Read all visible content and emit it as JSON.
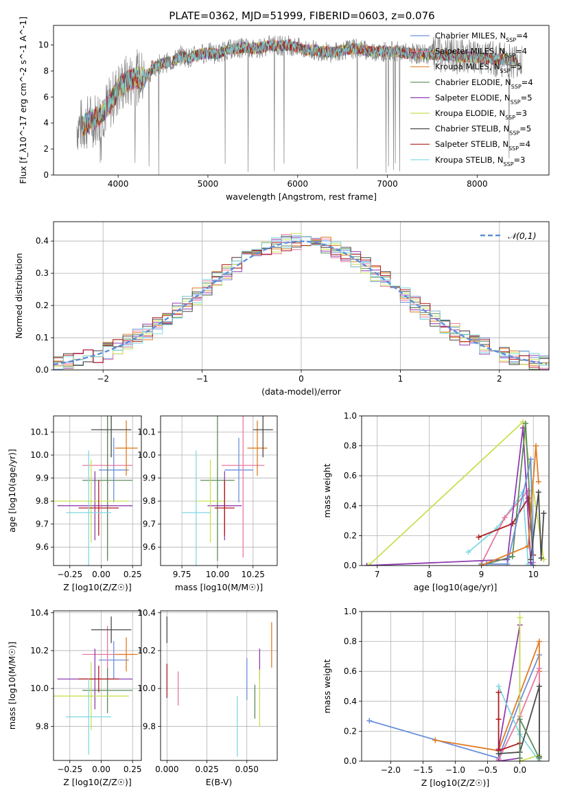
{
  "figure": {
    "title": "PLATE=0362, MJD=51999, FIBERID=0603, z=0.076"
  },
  "colors": {
    "Chabrier MILES": "#6a8fdc",
    "Salpeter MILES": "#e8789e",
    "Kroupa MILES": "#e07b22",
    "Chabrier ELODIE": "#5a8a5a",
    "Salpeter ELODIE": "#8e3bb0",
    "Kroupa ELODIE": "#c8e050",
    "Chabrier STELIB": "#4a4a4a",
    "Salpeter STELIB": "#b01a1a",
    "Kroupa STELIB": "#7fd8e0",
    "data": "#808080",
    "normal": "#5b8fd9"
  },
  "chart_data": [
    {
      "id": "spectrum",
      "type": "line",
      "xlabel": "wavelength [Angstrom, rest frame]",
      "ylabel": "Flux [f_λ10^-17 erg cm^-2 s^-1 A^-1]",
      "xlim": [
        3280,
        8800
      ],
      "ylim": [
        0,
        11.5
      ],
      "xticks": [
        4000,
        5000,
        6000,
        7000,
        8000
      ],
      "yticks": [
        0,
        2,
        4,
        6,
        8,
        10
      ],
      "grid": false,
      "legend_position": "right",
      "legend": [
        {
          "model": "Chabrier MILES",
          "nssp": "4"
        },
        {
          "model": "Salpeter MILES",
          "nssp": "4"
        },
        {
          "model": "Kroupa MILES",
          "nssp": "5"
        },
        {
          "model": "Chabrier ELODIE",
          "nssp": "4"
        },
        {
          "model": "Salpeter ELODIE",
          "nssp": "5"
        },
        {
          "model": "Kroupa ELODIE",
          "nssp": "3"
        },
        {
          "model": "Chabrier STELIB",
          "nssp": "5"
        },
        {
          "model": "Salpeter STELIB",
          "nssp": "4"
        },
        {
          "model": "Kroupa STELIB",
          "nssp": "3"
        }
      ],
      "continuum": {
        "x": [
          3600,
          3700,
          3800,
          3900,
          4000,
          4100,
          4200,
          4300,
          4400,
          4500,
          4600,
          4700,
          4800,
          4900,
          5000,
          5100,
          5200,
          5300,
          5400,
          5500,
          5600,
          5700,
          5800,
          5900,
          6000,
          6100,
          6200,
          6300,
          6400,
          6500,
          6600,
          6700,
          6800,
          6900,
          7000,
          7100,
          7200,
          7300,
          7400,
          7500,
          7600,
          7700,
          7800,
          7900,
          8000,
          8100,
          8200,
          8300,
          8400,
          8500
        ],
        "y": [
          3.8,
          4.2,
          4.6,
          5.4,
          6.6,
          7.2,
          7.5,
          7.4,
          8.3,
          8.6,
          8.7,
          9.2,
          9.0,
          9.3,
          9.4,
          9.3,
          9.6,
          9.7,
          9.8,
          9.7,
          9.8,
          10.0,
          9.9,
          10.0,
          9.8,
          9.6,
          9.6,
          9.5,
          9.4,
          9.6,
          9.7,
          9.7,
          9.5,
          9.5,
          9.5,
          9.5,
          9.4,
          9.3,
          9.3,
          9.3,
          9.2,
          9.2,
          9.1,
          9.1,
          9.0,
          9.0,
          8.9,
          8.9,
          8.8,
          8.8
        ]
      },
      "data_range": [
        3540,
        8500
      ],
      "model_range": [
        3600,
        8450
      ]
    },
    {
      "id": "residuals",
      "type": "line",
      "xlabel": "(data-model)/error",
      "ylabel": "Normed distribution",
      "xlim": [
        -2.5,
        2.5
      ],
      "ylim": [
        0,
        0.46
      ],
      "xticks": [
        -2,
        -1,
        0,
        1,
        2
      ],
      "yticks": [
        0.0,
        0.1,
        0.2,
        0.3,
        0.4
      ],
      "grid": true,
      "legend_position": "top-right",
      "legend": [
        "𝒩(0,1)"
      ],
      "normal": {
        "mu": 0,
        "sigma": 1
      }
    },
    {
      "id": "age-vs-Z",
      "type": "scatter",
      "xlabel": "Z [log10(Z/Z☉)]",
      "ylabel": "age  [log10(age/yr)]",
      "xlim": [
        -0.38,
        0.32
      ],
      "ylim": [
        9.52,
        10.17
      ],
      "xticks": [
        -0.25,
        0.0,
        0.25
      ],
      "xticklabels": [
        "−0.25",
        "0.00",
        "0.25"
      ],
      "yticks": [
        9.6,
        9.7,
        9.8,
        9.9,
        10.0,
        10.1
      ],
      "grid": true,
      "points": [
        {
          "model": "Chabrier MILES",
          "x": 0.1,
          "xerr": 0.12,
          "y": 9.935,
          "yerr": 0.14
        },
        {
          "model": "Salpeter MILES",
          "x": 0.05,
          "xerr": 0.2,
          "y": 9.955,
          "yerr": 0.4
        },
        {
          "model": "Kroupa MILES",
          "x": 0.2,
          "xerr": 0.09,
          "y": 10.03,
          "yerr": 0.12
        },
        {
          "model": "Chabrier ELODIE",
          "x": 0.05,
          "xerr": 0.2,
          "y": 9.89,
          "yerr": 0.35
        },
        {
          "model": "Salpeter ELODIE",
          "x": -0.05,
          "xerr": 0.3,
          "y": 9.78,
          "yerr": 0.15
        },
        {
          "model": "Kroupa ELODIE",
          "x": -0.08,
          "xerr": 0.3,
          "y": 9.8,
          "yerr": 0.18
        },
        {
          "model": "Chabrier STELIB",
          "x": 0.08,
          "xerr": 0.16,
          "y": 10.11,
          "yerr": 0.12
        },
        {
          "model": "Salpeter STELIB",
          "x": -0.02,
          "xerr": 0.16,
          "y": 9.77,
          "yerr": 0.12
        },
        {
          "model": "Kroupa STELIB",
          "x": -0.1,
          "xerr": 0.18,
          "y": 9.75,
          "yerr": 0.27
        }
      ]
    },
    {
      "id": "age-vs-mass",
      "type": "scatter",
      "xlabel": "mass [log10(M/M☉)]",
      "ylabel": "",
      "xlim": [
        9.6,
        10.42
      ],
      "ylim": [
        9.52,
        10.17
      ],
      "xticks": [
        9.75,
        10.0,
        10.25
      ],
      "xticklabels": [
        "9.75",
        "10.00",
        "10.25"
      ],
      "yticks": [
        9.6,
        9.7,
        9.8,
        9.9,
        10.0,
        10.1
      ],
      "grid": true,
      "points": [
        {
          "model": "Chabrier MILES",
          "x": 10.15,
          "xerr": 0.1,
          "y": 9.935,
          "yerr": 0.14
        },
        {
          "model": "Salpeter MILES",
          "x": 10.18,
          "xerr": 0.15,
          "y": 9.955,
          "yerr": 0.4
        },
        {
          "model": "Kroupa MILES",
          "x": 10.28,
          "xerr": 0.07,
          "y": 10.03,
          "yerr": 0.12
        },
        {
          "model": "Chabrier ELODIE",
          "x": 10.0,
          "xerr": 0.12,
          "y": 9.89,
          "yerr": 0.35
        },
        {
          "model": "Salpeter ELODIE",
          "x": 10.05,
          "xerr": 0.12,
          "y": 9.78,
          "yerr": 0.15
        },
        {
          "model": "Kroupa ELODIE",
          "x": 9.95,
          "xerr": 0.1,
          "y": 9.8,
          "yerr": 0.18
        },
        {
          "model": "Chabrier STELIB",
          "x": 10.32,
          "xerr": 0.07,
          "y": 10.11,
          "yerr": 0.12
        },
        {
          "model": "Salpeter STELIB",
          "x": 10.05,
          "xerr": 0.07,
          "y": 9.77,
          "yerr": 0.12
        },
        {
          "model": "Kroupa STELIB",
          "x": 9.85,
          "xerr": 0.1,
          "y": 9.75,
          "yerr": 0.27
        }
      ]
    },
    {
      "id": "weights-vs-age",
      "type": "line",
      "xlabel": "age  [log10(age/yr)]",
      "ylabel": "mass weight",
      "xlim": [
        6.7,
        10.3
      ],
      "ylim": [
        0.0,
        1.0
      ],
      "xticks": [
        7,
        8,
        9,
        10
      ],
      "yticks": [
        0.0,
        0.2,
        0.4,
        0.6,
        0.8,
        1.0
      ],
      "grid": true,
      "series": [
        {
          "model": "Kroupa ELODIE",
          "x": [
            6.85,
            9.8,
            10.2
          ],
          "y": [
            0.005,
            0.96,
            0.04
          ]
        },
        {
          "model": "Kroupa STELIB",
          "x": [
            8.75,
            9.3,
            9.8,
            9.9
          ],
          "y": [
            0.09,
            0.25,
            0.49,
            0.01
          ]
        },
        {
          "model": "Salpeter MILES",
          "x": [
            9.0,
            9.45,
            9.9,
            10.0
          ],
          "y": [
            0.01,
            0.32,
            0.5,
            0.02
          ]
        },
        {
          "model": "Salpeter STELIB",
          "x": [
            8.95,
            9.6,
            9.9,
            10.0
          ],
          "y": [
            0.19,
            0.28,
            0.45,
            0.07
          ]
        },
        {
          "model": "Salpeter ELODIE",
          "x": [
            6.8,
            9.5,
            9.8,
            9.95,
            10.0
          ],
          "y": [
            0.0,
            0.04,
            0.92,
            0.02,
            0.0
          ]
        },
        {
          "model": "Chabrier ELODIE",
          "x": [
            9.1,
            9.6,
            9.85,
            10.0
          ],
          "y": [
            0.01,
            0.06,
            0.95,
            0.0
          ]
        },
        {
          "model": "Chabrier MILES",
          "x": [
            9.0,
            9.5,
            9.95,
            10.0
          ],
          "y": [
            0.01,
            0.01,
            0.71,
            0.0
          ]
        },
        {
          "model": "Kroupa MILES",
          "x": [
            9.0,
            9.9,
            10.05,
            10.1
          ],
          "y": [
            0.0,
            0.13,
            0.8,
            0.56
          ]
        },
        {
          "model": "Chabrier STELIB",
          "x": [
            9.95,
            10.1,
            10.15,
            10.2
          ],
          "y": [
            0.04,
            0.49,
            0.05,
            0.35
          ]
        }
      ]
    },
    {
      "id": "mass-vs-Z",
      "type": "scatter",
      "xlabel": "Z [log10(Z/Z☉)]",
      "ylabel": "mass [log10(M/M☉)]",
      "xlim": [
        -0.38,
        0.32
      ],
      "ylim": [
        9.62,
        10.41
      ],
      "xticks": [
        -0.25,
        0.0,
        0.25
      ],
      "xticklabels": [
        "−0.25",
        "0.00",
        "0.25"
      ],
      "yticks": [
        9.8,
        10.0,
        10.2,
        10.4
      ],
      "grid": true,
      "points": [
        {
          "model": "Chabrier MILES",
          "x": 0.1,
          "xerr": 0.12,
          "y": 10.15,
          "yerr": 0.1
        },
        {
          "model": "Salpeter MILES",
          "x": 0.05,
          "xerr": 0.2,
          "y": 10.18,
          "yerr": 0.15
        },
        {
          "model": "Kroupa MILES",
          "x": 0.2,
          "xerr": 0.09,
          "y": 10.18,
          "yerr": 0.09
        },
        {
          "model": "Chabrier ELODIE",
          "x": 0.05,
          "xerr": 0.2,
          "y": 9.99,
          "yerr": 0.12
        },
        {
          "model": "Salpeter ELODIE",
          "x": -0.05,
          "xerr": 0.3,
          "y": 10.05,
          "yerr": 0.16
        },
        {
          "model": "Kroupa ELODIE",
          "x": -0.08,
          "xerr": 0.3,
          "y": 9.96,
          "yerr": 0.18
        },
        {
          "model": "Chabrier STELIB",
          "x": 0.08,
          "xerr": 0.16,
          "y": 10.31,
          "yerr": 0.07
        },
        {
          "model": "Salpeter STELIB",
          "x": -0.02,
          "xerr": 0.16,
          "y": 10.05,
          "yerr": 0.07
        },
        {
          "model": "Kroupa STELIB",
          "x": -0.1,
          "xerr": 0.18,
          "y": 9.85,
          "yerr": 0.2
        }
      ]
    },
    {
      "id": "mass-vs-EBV",
      "type": "scatter",
      "xlabel": "E(B-V)",
      "ylabel": "",
      "xlim": [
        -0.004,
        0.069
      ],
      "ylim": [
        9.62,
        10.41
      ],
      "xticks": [
        0.0,
        0.025,
        0.05
      ],
      "xticklabels": [
        "0.000",
        "0.025",
        "0.050"
      ],
      "yticks": [
        9.8,
        10.0,
        10.2,
        10.4
      ],
      "grid": true,
      "points": [
        {
          "model": "Chabrier MILES",
          "x": 0.05,
          "y": 10.05,
          "yerr": 0.11
        },
        {
          "model": "Salpeter MILES",
          "x": 0.007,
          "y": 10.0,
          "yerr": 0.09
        },
        {
          "model": "Kroupa MILES",
          "x": 0.0655,
          "y": 10.23,
          "yerr": 0.12
        },
        {
          "model": "Chabrier ELODIE",
          "x": 0.055,
          "y": 9.93,
          "yerr": 0.09
        },
        {
          "model": "Salpeter ELODIE",
          "x": 0.058,
          "y": 10.13,
          "yerr": 0.08
        },
        {
          "model": "Kroupa ELODIE",
          "x": 0.058,
          "y": 9.95,
          "yerr": 0.15
        },
        {
          "model": "Chabrier STELIB",
          "x": 0.0,
          "y": 10.31,
          "yerr": 0.07
        },
        {
          "model": "Salpeter STELIB",
          "x": 0.0,
          "y": 10.04,
          "yerr": 0.09
        },
        {
          "model": "Kroupa STELIB",
          "x": 0.044,
          "y": 9.8,
          "yerr": 0.16
        }
      ]
    },
    {
      "id": "weights-vs-Z",
      "type": "line",
      "xlabel": "Z [log10(Z/Z☉)]",
      "ylabel": "mass weight",
      "xlim": [
        -2.45,
        0.45
      ],
      "ylim": [
        0.0,
        1.0
      ],
      "xticks": [
        -2.0,
        -1.5,
        -1.0,
        -0.5,
        0.0
      ],
      "xticklabels": [
        "−2.0",
        "−1.5",
        "−1.0",
        "−0.5",
        "0.0"
      ],
      "yticks": [
        0.0,
        0.2,
        0.4,
        0.6,
        0.8,
        1.0
      ],
      "grid": true,
      "series": [
        {
          "model": "Chabrier MILES",
          "x": [
            -2.33,
            -0.33,
            0.0,
            0.3
          ],
          "y": [
            0.27,
            0.02,
            0.4,
            0.71
          ]
        },
        {
          "model": "Kroupa MILES",
          "x": [
            -1.31,
            -0.33,
            0.3,
            0.3,
            0.3
          ],
          "y": [
            0.14,
            0.07,
            0.8,
            0.6,
            0.0
          ]
        },
        {
          "model": "Salpeter MILES",
          "x": [
            -0.33,
            0.0,
            0.3,
            0.3
          ],
          "y": [
            0.01,
            0.3,
            0.62,
            0.02
          ]
        },
        {
          "model": "Salpeter ELODIE",
          "x": [
            -0.33,
            0.0,
            0.0,
            -0.33
          ],
          "y": [
            0.08,
            0.91,
            0.02,
            0.0
          ]
        },
        {
          "model": "Kroupa ELODIE",
          "x": [
            0.0,
            0.0,
            0.3
          ],
          "y": [
            0.96,
            0.0,
            0.04
          ]
        },
        {
          "model": "Kroupa STELIB",
          "x": [
            -0.33,
            0.0,
            0.3
          ],
          "y": [
            0.5,
            0.18,
            0.0
          ]
        },
        {
          "model": "Salpeter STELIB",
          "x": [
            -0.33,
            -0.33,
            -0.33,
            0.0
          ],
          "y": [
            0.46,
            0.28,
            0.07,
            0.12
          ]
        },
        {
          "model": "Chabrier STELIB",
          "x": [
            -0.33,
            0.0,
            0.3,
            0.3
          ],
          "y": [
            0.05,
            0.06,
            0.5,
            0.03
          ]
        },
        {
          "model": "Chabrier ELODIE",
          "x": [
            0.0,
            0.0,
            0.3
          ],
          "y": [
            0.02,
            0.28,
            0.02
          ]
        }
      ]
    }
  ]
}
